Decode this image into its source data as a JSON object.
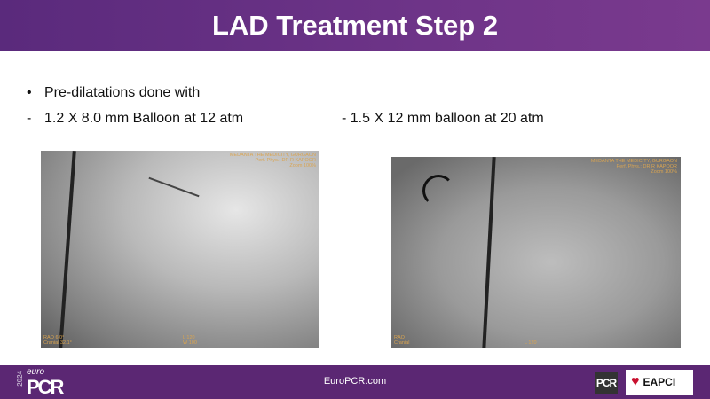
{
  "header": {
    "title": "LAD Treatment Step 2"
  },
  "content": {
    "bullet": "Pre-dilatations done with",
    "bullet_marker": "•",
    "dash": "-",
    "item1": "1.2 X 8.0 mm Balloon at 12 atm",
    "item2": "- 1.5 X 12 mm balloon at 20 atm"
  },
  "images": [
    {
      "hospital": "MEDANTA THE MEDICITY, GURGAON\nPerf. Phys.: DR R KAPOOR\nZoom 100%",
      "angle": "RAO 6.0°\nCranial 32.1°",
      "window": "L 120\nW 100"
    },
    {
      "hospital": "MEDANTA THE MEDICITY, GURGAON\nPerf. Phys.: DR R KAPOOR\nZoom 100%",
      "angle": "RAO\nCranial",
      "window": "L 120"
    }
  ],
  "footer": {
    "site": "EuroPCR.com",
    "logo_year": "2024",
    "logo_euro": "euro",
    "logo_pcr": "PCR",
    "pcr_badge": "PCR",
    "eapci": "EAPCI"
  },
  "colors": {
    "header": "#6e3488",
    "footer": "#5b2773",
    "overlay_text": "#d9a451"
  }
}
